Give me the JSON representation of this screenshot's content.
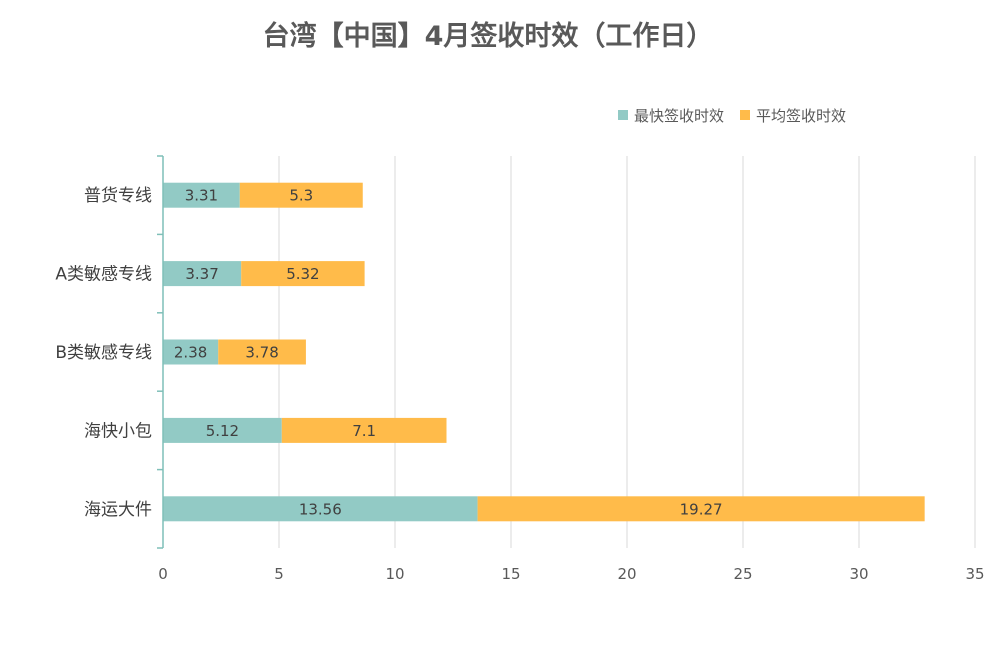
{
  "chart_data": {
    "type": "bar",
    "orientation": "horizontal",
    "stacked": true,
    "title": "台湾【中国】4月签收时效（工作日）",
    "categories": [
      "普货专线",
      "A类敏感专线",
      "B类敏感专线",
      "海快小包",
      "海运大件"
    ],
    "series": [
      {
        "name": "最快签收时效",
        "values": [
          3.31,
          3.37,
          2.38,
          5.12,
          13.56
        ],
        "color": "#92CAC5"
      },
      {
        "name": "平均签收时效",
        "values": [
          5.3,
          5.32,
          3.78,
          7.1,
          19.27
        ],
        "color": "#FFBB4A"
      }
    ],
    "xlim": [
      0,
      35
    ],
    "xticks": [
      0,
      5,
      10,
      15,
      20,
      25,
      30,
      35
    ],
    "grid": "vertical",
    "legend": "top-right",
    "axis_color": "#7FBFB8",
    "grid_color": "#D9D9D9"
  }
}
